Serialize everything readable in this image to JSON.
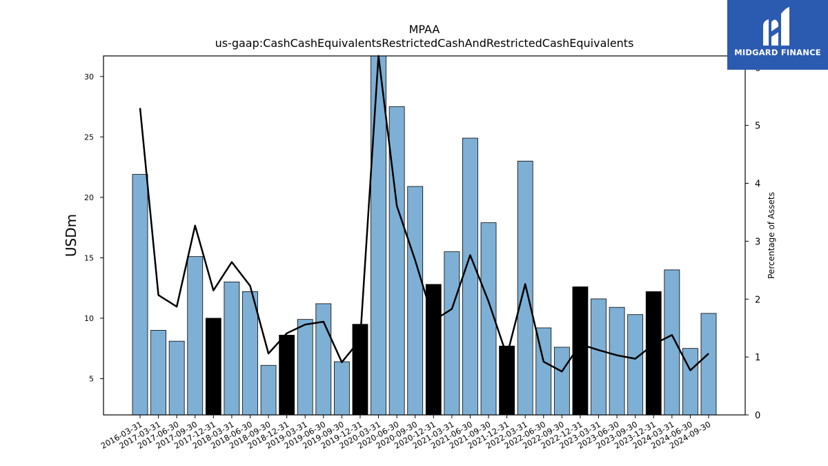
{
  "brand": {
    "name": "MIDGARD FINANCE",
    "icon": "midgard-logo-icon",
    "background": "#2b5bb0"
  },
  "colors": {
    "bar_normal": "#7eb0d5",
    "bar_highlight": "#000000",
    "bar_edge": "#000000",
    "line": "#000000"
  },
  "chart_data": {
    "type": "bar",
    "title": "MPAA",
    "subtitle": "us-gaap:CashCashEquivalentsRestrictedCashAndRestrictedCashEquivalents",
    "ylabel": "USDm",
    "y2label": "Percentage of Assets",
    "ylim": [
      2,
      31.7
    ],
    "y2lim": [
      0,
      6.2
    ],
    "yticks": [
      5,
      10,
      15,
      20,
      25,
      30
    ],
    "y2ticks": [
      0,
      1,
      2,
      3,
      4,
      5,
      6
    ],
    "grid": false,
    "categories": [
      "2016-03-31",
      "2017-03-31",
      "2017-06-30",
      "2017-09-30",
      "2017-12-31",
      "2018-03-31",
      "2018-06-30",
      "2018-09-30",
      "2018-12-31",
      "2019-03-31",
      "2019-06-30",
      "2019-09-30",
      "2019-12-31",
      "2020-03-31",
      "2020-06-30",
      "2020-09-30",
      "2020-12-31",
      "2021-03-31",
      "2021-06-30",
      "2021-09-30",
      "2021-12-31",
      "2022-03-31",
      "2022-06-30",
      "2022-09-30",
      "2022-12-31",
      "2023-03-31",
      "2023-06-30",
      "2023-09-30",
      "2023-12-31",
      "2024-03-31",
      "2024-06-30",
      "2024-09-30"
    ],
    "series": [
      {
        "kind": "bar",
        "axis": "left",
        "values": [
          21.9,
          9.0,
          8.1,
          15.1,
          10.0,
          13.0,
          12.2,
          6.1,
          8.6,
          9.9,
          11.2,
          6.4,
          9.5,
          31.7,
          27.5,
          20.9,
          12.8,
          15.5,
          24.9,
          17.9,
          7.7,
          23.0,
          9.2,
          7.6,
          12.6,
          11.6,
          10.9,
          10.3,
          12.2,
          14.0,
          7.5,
          10.4
        ],
        "highlighted": [
          false,
          false,
          false,
          false,
          true,
          false,
          false,
          false,
          true,
          false,
          false,
          false,
          true,
          false,
          false,
          false,
          true,
          false,
          false,
          false,
          true,
          false,
          false,
          false,
          true,
          false,
          false,
          false,
          true,
          false,
          false,
          false
        ]
      },
      {
        "kind": "line",
        "axis": "right",
        "values": [
          5.3,
          2.07,
          1.87,
          3.27,
          2.15,
          2.64,
          2.23,
          1.06,
          1.41,
          1.56,
          1.61,
          0.91,
          1.3,
          6.25,
          3.61,
          2.67,
          1.63,
          1.83,
          2.76,
          1.96,
          1.02,
          2.26,
          0.92,
          0.75,
          1.22,
          1.12,
          1.03,
          0.97,
          1.22,
          1.38,
          0.77,
          1.06
        ]
      }
    ]
  }
}
